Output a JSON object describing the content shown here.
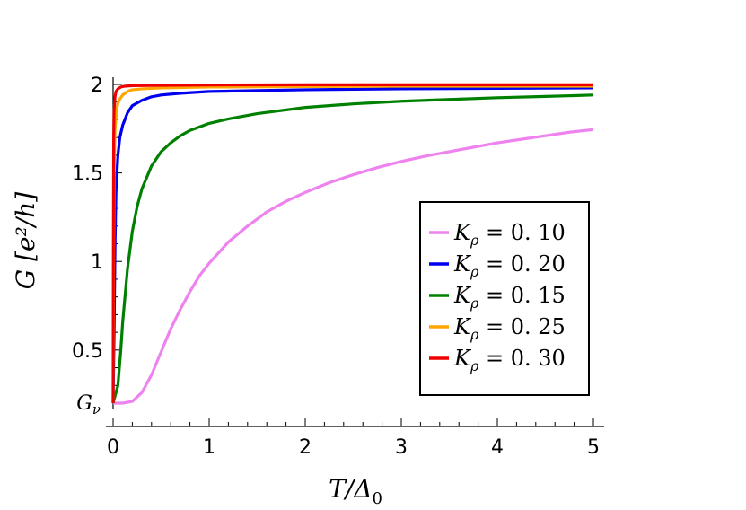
{
  "chart_data": {
    "type": "line",
    "title": "",
    "xlabel": "T/Δ",
    "xlabel_sub": "0",
    "ylabel": "G [e²/h]",
    "xlim": [
      0,
      5
    ],
    "ylim": [
      0.2,
      2
    ],
    "x_ticks": [
      {
        "value": 0,
        "label": "0"
      },
      {
        "value": 1,
        "label": "1"
      },
      {
        "value": 2,
        "label": "2"
      },
      {
        "value": 3,
        "label": "3"
      },
      {
        "value": 4,
        "label": "4"
      },
      {
        "value": 5,
        "label": "5"
      }
    ],
    "y_ticks": [
      {
        "value": 0.5,
        "label": "0.5"
      },
      {
        "value": 1,
        "label": "1"
      },
      {
        "value": 1.5,
        "label": "1.5"
      },
      {
        "value": 2,
        "label": "2"
      }
    ],
    "y_special_tick": {
      "value": 0.2,
      "label": "G",
      "sub": "ν"
    },
    "grid": false,
    "legend_position": "lower-right",
    "series": [
      {
        "name": "Kρ = 0.10",
        "label_main": "K",
        "label_sub": "ρ",
        "label_value": " = 0. 10",
        "color": "#ee82ee",
        "x": [
          0,
          0.1,
          0.2,
          0.3,
          0.4,
          0.5,
          0.6,
          0.7,
          0.8,
          0.9,
          1.0,
          1.2,
          1.4,
          1.6,
          1.8,
          2.0,
          2.25,
          2.5,
          2.75,
          3.0,
          3.25,
          3.5,
          3.75,
          4.0,
          4.25,
          4.5,
          4.75,
          5.0
        ],
        "y": [
          0.2,
          0.2,
          0.21,
          0.26,
          0.36,
          0.49,
          0.62,
          0.73,
          0.83,
          0.92,
          0.99,
          1.11,
          1.2,
          1.28,
          1.34,
          1.39,
          1.445,
          1.49,
          1.53,
          1.565,
          1.595,
          1.62,
          1.645,
          1.67,
          1.69,
          1.71,
          1.73,
          1.745
        ]
      },
      {
        "name": "Kρ = 0.20",
        "label_main": "K",
        "label_sub": "ρ",
        "label_value": " = 0. 20",
        "color": "#0000ee",
        "x": [
          0,
          0.01,
          0.02,
          0.03,
          0.05,
          0.07,
          0.1,
          0.15,
          0.2,
          0.3,
          0.4,
          0.5,
          0.7,
          1.0,
          1.5,
          2.0,
          3.0,
          4.0,
          5.0
        ],
        "y": [
          0.2,
          0.6,
          1.1,
          1.4,
          1.6,
          1.7,
          1.77,
          1.84,
          1.88,
          1.91,
          1.93,
          1.94,
          1.95,
          1.96,
          1.965,
          1.97,
          1.975,
          1.978,
          1.98
        ]
      },
      {
        "name": "Kρ = 0.15",
        "label_main": "K",
        "label_sub": "ρ",
        "label_value": " = 0. 15",
        "color": "#008000",
        "x": [
          0,
          0.05,
          0.08,
          0.1,
          0.15,
          0.2,
          0.25,
          0.3,
          0.4,
          0.5,
          0.6,
          0.7,
          0.8,
          1.0,
          1.2,
          1.5,
          2.0,
          2.5,
          3.0,
          3.5,
          4.0,
          4.5,
          5.0
        ],
        "y": [
          0.2,
          0.3,
          0.5,
          0.66,
          0.96,
          1.17,
          1.31,
          1.41,
          1.54,
          1.62,
          1.67,
          1.71,
          1.74,
          1.78,
          1.805,
          1.835,
          1.87,
          1.89,
          1.905,
          1.915,
          1.925,
          1.932,
          1.94
        ]
      },
      {
        "name": "Kρ = 0.25",
        "label_main": "K",
        "label_sub": "ρ",
        "label_value": " = 0. 25",
        "color": "#ffa500",
        "x": [
          0,
          0.005,
          0.01,
          0.02,
          0.04,
          0.06,
          0.1,
          0.15,
          0.2,
          0.3,
          0.5,
          1.0,
          2.0,
          3.0,
          4.0,
          5.0
        ],
        "y": [
          0.2,
          1.0,
          1.5,
          1.75,
          1.87,
          1.91,
          1.94,
          1.96,
          1.97,
          1.975,
          1.98,
          1.985,
          1.988,
          1.99,
          1.99,
          1.99
        ]
      },
      {
        "name": "Kρ = 0.30",
        "label_main": "K",
        "label_sub": "ρ",
        "label_value": " = 0. 30",
        "color": "#ee0000",
        "x": [
          0,
          0.003,
          0.006,
          0.01,
          0.02,
          0.03,
          0.05,
          0.08,
          0.12,
          0.2,
          0.5,
          1.0,
          2.0,
          5.0
        ],
        "y": [
          0.2,
          1.2,
          1.7,
          1.85,
          1.93,
          1.96,
          1.975,
          1.985,
          1.99,
          1.993,
          1.995,
          1.997,
          1.998,
          1.998
        ]
      }
    ]
  }
}
